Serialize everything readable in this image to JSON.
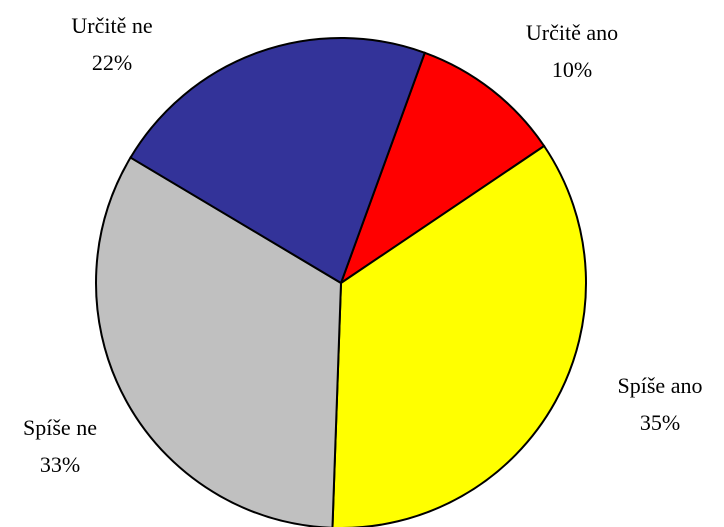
{
  "chart_data": {
    "type": "pie",
    "categories": [
      "Určitě ano",
      "Spíše ano",
      "Spíše ne",
      "Určitě ne"
    ],
    "values": [
      10,
      35,
      33,
      22
    ],
    "value_labels": [
      "10%",
      "35%",
      "33%",
      "22%"
    ],
    "colors": [
      "#ff0000",
      "#ffff00",
      "#c0c0c0",
      "#333399"
    ]
  }
}
